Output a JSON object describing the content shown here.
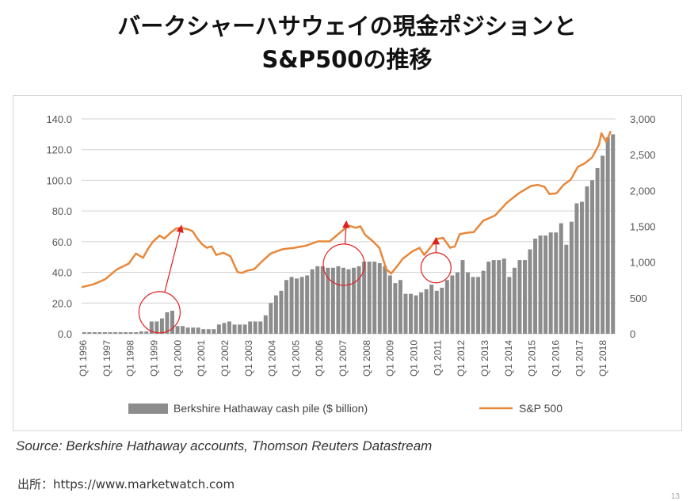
{
  "title": {
    "line1": "バークシャーハサウェイの現金ポジションと",
    "line2": "S&P500の推移"
  },
  "source_text": "Source: Berkshire Hathaway accounts, Thomson Reuters Datastream",
  "credit_text": "出所：https://www.marketwatch.com",
  "page_number": "13",
  "colors": {
    "bars": "#8c8c8c",
    "line": "#e8873a",
    "annotation": "#e02020",
    "grid": "#d0d0d0",
    "axis_text": "#555555"
  },
  "chart_data": {
    "type": "bar",
    "x_tick_labels": [
      "Q1 1996",
      "Q1 1997",
      "Q1 1998",
      "Q1 1999",
      "Q1 2000",
      "Q1 2001",
      "Q1 2002",
      "Q1 2003",
      "Q1 2004",
      "Q1 2005",
      "Q1 2006",
      "Q1 2007",
      "Q1 2008",
      "Q1 2009",
      "Q1 2010",
      "Q1 2011",
      "Q1 2012",
      "Q1 2013",
      "Q1 2014",
      "Q1 2015",
      "Q1 2016",
      "Q1 2017",
      "Q1 2018"
    ],
    "y_left": {
      "ticks": [
        "0.0",
        "20.0",
        "40.0",
        "60.0",
        "80.0",
        "100.0",
        "120.0",
        "140.0"
      ],
      "lim": [
        0,
        140
      ]
    },
    "y_right": {
      "ticks": [
        "0",
        "500",
        "1,000",
        "1,500",
        "2,000",
        "2,500",
        "3,000"
      ],
      "lim": [
        0,
        3000
      ]
    },
    "grid": true,
    "legend_position": "bottom",
    "series": [
      {
        "name": "Berkshire Hathaway cash pile ($ billion)",
        "type": "bar",
        "axis": "left",
        "values": [
          1.0,
          1.0,
          1.0,
          1.0,
          1.0,
          1.0,
          1.0,
          1.0,
          1.0,
          1.0,
          1.0,
          1.5,
          1.5,
          8.0,
          8.0,
          10.0,
          14.0,
          15.0,
          5.0,
          5.0,
          4.0,
          4.0,
          4.0,
          3.0,
          3.0,
          3.0,
          6.0,
          7.0,
          8.0,
          6.0,
          6.0,
          6.0,
          8.0,
          8.0,
          8.0,
          12.0,
          20.0,
          25.0,
          28.0,
          35.0,
          37.0,
          36.0,
          37.0,
          38.0,
          42.0,
          44.0,
          44.0,
          43.0,
          43.0,
          44.0,
          43.0,
          42.0,
          43.0,
          44.0,
          47.0,
          47.0,
          47.0,
          46.0,
          44.0,
          38.0,
          33.0,
          35.0,
          26.0,
          26.0,
          25.0,
          27.0,
          29.0,
          32.0,
          28.0,
          30.0,
          35.0,
          38.0,
          40.0,
          48.0,
          40.0,
          37.0,
          37.0,
          41.0,
          47.0,
          48.0,
          48.0,
          49.0,
          37.0,
          43.0,
          48.0,
          48.0,
          55.0,
          62.0,
          64.0,
          64.0,
          66.0,
          66.0,
          72.0,
          58.0,
          73.0,
          85.0,
          86.0,
          96.0,
          100.0,
          108.0,
          116.0,
          128.0,
          130.0
        ]
      },
      {
        "name": "S&P 500",
        "type": "line",
        "axis": "right",
        "x": [
          1996.0,
          1996.5,
          1997.0,
          1997.5,
          1998.0,
          1998.3,
          1998.6,
          1998.8,
          1999.0,
          1999.3,
          1999.5,
          1999.8,
          2000.0,
          2000.2,
          2000.5,
          2000.7,
          2000.9,
          2001.1,
          2001.3,
          2001.5,
          2001.7,
          2002.0,
          2002.3,
          2002.6,
          2002.8,
          2003.0,
          2003.3,
          2003.6,
          2004.0,
          2004.5,
          2005.0,
          2005.5,
          2006.0,
          2006.5,
          2007.0,
          2007.3,
          2007.6,
          2007.8,
          2008.0,
          2008.3,
          2008.6,
          2008.9,
          2009.1,
          2009.3,
          2009.6,
          2010.0,
          2010.3,
          2010.5,
          2010.8,
          2011.0,
          2011.3,
          2011.6,
          2011.8,
          2012.0,
          2012.3,
          2012.6,
          2013.0,
          2013.5,
          2014.0,
          2014.5,
          2015.0,
          2015.3,
          2015.6,
          2015.8,
          2016.1,
          2016.4,
          2016.7,
          2017.0,
          2017.3,
          2017.6,
          2017.9,
          2018.0,
          2018.2,
          2018.4
        ],
        "values": [
          650,
          690,
          760,
          900,
          980,
          1120,
          1060,
          1180,
          1280,
          1370,
          1330,
          1420,
          1470,
          1480,
          1460,
          1430,
          1330,
          1250,
          1200,
          1220,
          1100,
          1130,
          1080,
          860,
          850,
          880,
          900,
          1000,
          1120,
          1180,
          1200,
          1230,
          1290,
          1290,
          1430,
          1510,
          1480,
          1500,
          1380,
          1300,
          1200,
          900,
          840,
          920,
          1050,
          1150,
          1200,
          1100,
          1220,
          1320,
          1340,
          1200,
          1220,
          1390,
          1410,
          1420,
          1580,
          1650,
          1830,
          1960,
          2060,
          2080,
          2050,
          1950,
          1960,
          2080,
          2150,
          2330,
          2380,
          2460,
          2640,
          2800,
          2680,
          2830
        ]
      }
    ],
    "annotations": [
      {
        "kind": "circle_arrow",
        "target_year": 1999.3,
        "target_value_left": 14.0,
        "arrow_to_year": 2000.2,
        "arrow_to_value_right": 1470
      },
      {
        "kind": "circle_arrow",
        "target_year": 2007.1,
        "target_value_left": 45.0,
        "arrow_to_year": 2007.2,
        "arrow_to_value_right": 1530
      },
      {
        "kind": "circle_arrow",
        "target_year": 2011.0,
        "target_value_left": 43.0,
        "arrow_to_year": 2011.0,
        "arrow_to_value_right": 1300
      }
    ],
    "legend": {
      "bar_label": "Berkshire Hathaway cash pile ($ billion)",
      "line_label": "S&P 500"
    }
  }
}
